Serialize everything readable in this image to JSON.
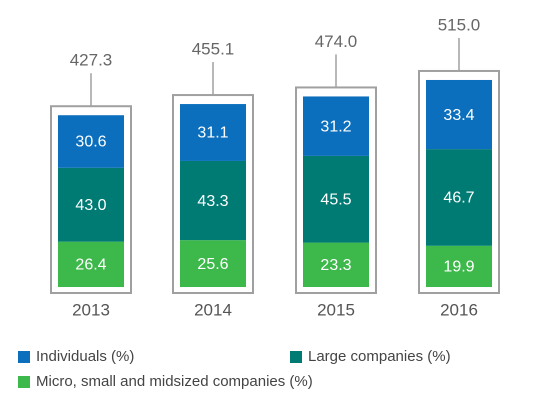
{
  "chart_data": {
    "type": "stacked-bar",
    "categories": [
      "2013",
      "2014",
      "2015",
      "2016"
    ],
    "totals": [
      {
        "value": 427.3,
        "label": "427.3"
      },
      {
        "value": 455.1,
        "label": "455.1"
      },
      {
        "value": 474.0,
        "label": "474.0"
      },
      {
        "value": 515.0,
        "label": "515.0"
      }
    ],
    "series": [
      {
        "name": "Individuals (%)",
        "color": "#0b6fbd",
        "values": [
          30.6,
          31.1,
          31.2,
          33.4
        ],
        "value_labels": [
          "30.6",
          "31.1",
          "31.2",
          "33.4"
        ]
      },
      {
        "name": "Large companies (%)",
        "color": "#007b74",
        "values": [
          43.0,
          43.3,
          45.5,
          46.7
        ],
        "value_labels": [
          "43.0",
          "43.3",
          "45.5",
          "46.7"
        ]
      },
      {
        "name": "Micro, small and midsized companies (%)",
        "color": "#3db84a",
        "values": [
          26.4,
          25.6,
          23.3,
          19.9
        ],
        "value_labels": [
          "26.4",
          "25.6",
          "23.3",
          "19.9"
        ]
      }
    ]
  }
}
